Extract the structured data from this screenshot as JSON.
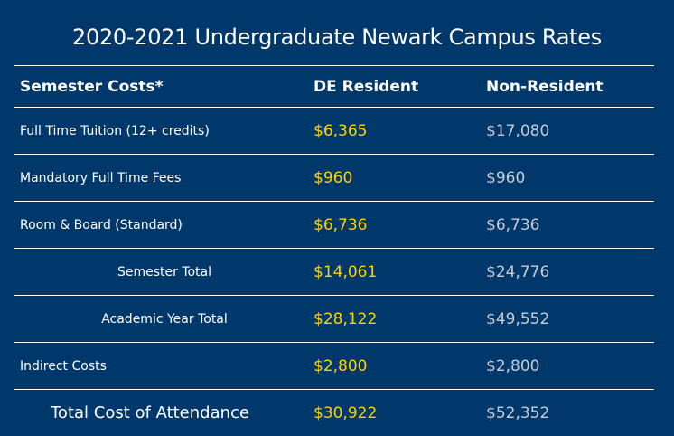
{
  "title": "2020-2021 Undergraduate Newark Campus Rates",
  "table": {
    "headers": [
      "Semester Costs*",
      "DE Resident",
      "Non-Resident"
    ],
    "rows": [
      {
        "label": "Full Time Tuition (12+ credits)",
        "de": "$6,365",
        "non": "$17,080"
      },
      {
        "label": "Mandatory Full Time Fees",
        "de": "$960",
        "non": "$960"
      },
      {
        "label": "Room & Board (Standard)",
        "de": "$6,736",
        "non": "$6,736"
      },
      {
        "label": "Semester Total",
        "de": "$14,061",
        "non": "$24,776"
      },
      {
        "label": "Academic Year Total",
        "de": "$28,122",
        "non": "$49,552"
      },
      {
        "label": "Indirect Costs",
        "de": "$2,800",
        "non": "$2,800"
      },
      {
        "label": "Total Cost of Attendance",
        "de": "$30,922",
        "non": "$52,352"
      }
    ]
  },
  "colors": {
    "background": "#00386b",
    "de_value": "#ffd200",
    "non_value": "#c7cdd5",
    "text": "#ffffff"
  }
}
